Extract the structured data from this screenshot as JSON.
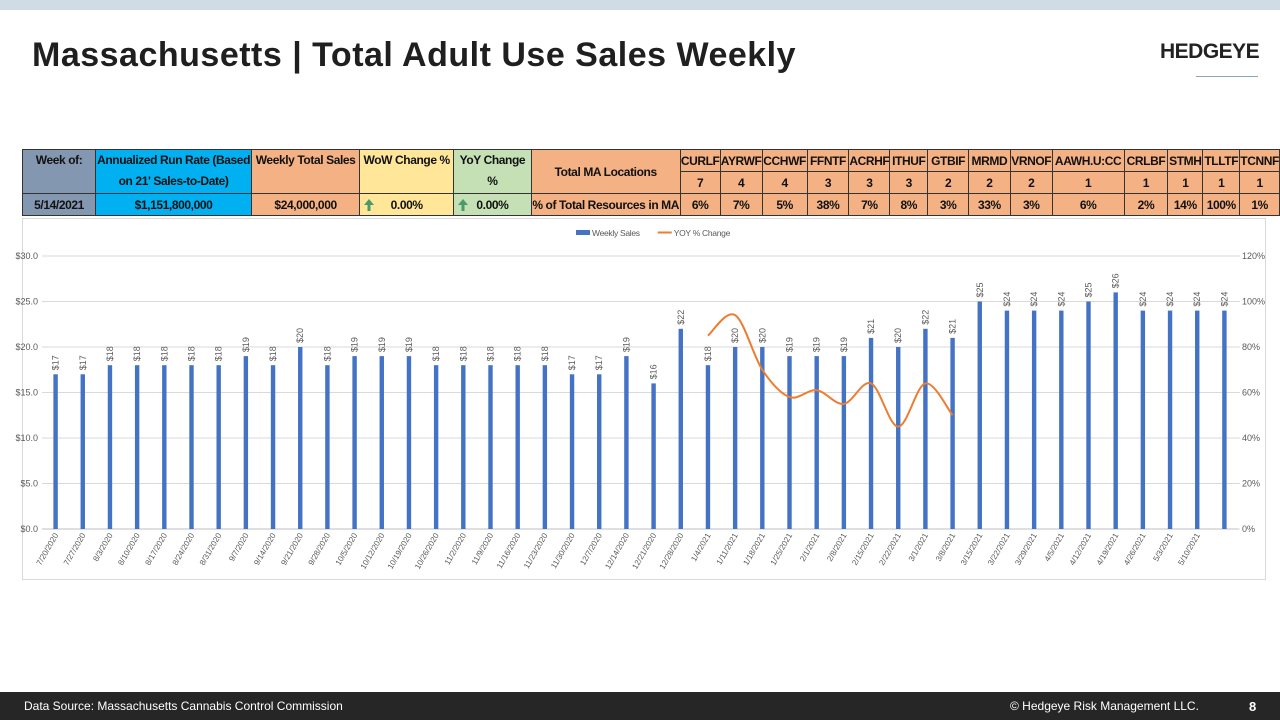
{
  "header": {
    "title": "Massachusetts | Total Adult Use Sales Weekly",
    "logo": "HEDGEYE"
  },
  "table": {
    "columns": [
      {
        "header": "Week of:",
        "value": "5/14/2021"
      },
      {
        "header": "Annualized Run Rate (Based on 21' Sales-to-Date)",
        "value": "$1,151,800,000"
      },
      {
        "header": "Weekly Total Sales",
        "value": "$24,000,000"
      },
      {
        "header": "WoW Change %",
        "value": "0.00%"
      },
      {
        "header": "YoY Change %",
        "value": "0.00%"
      }
    ],
    "locations_label": "Total MA Locations",
    "resources_label": "% of Total Resources in MA",
    "tickers": [
      {
        "name": "CURLF",
        "locations": 7,
        "share": "6%"
      },
      {
        "name": "AYRWF",
        "locations": 4,
        "share": "7%"
      },
      {
        "name": "CCHWF",
        "locations": 4,
        "share": "5%"
      },
      {
        "name": "FFNTF",
        "locations": 3,
        "share": "38%"
      },
      {
        "name": "ACRHF",
        "locations": 3,
        "share": "7%"
      },
      {
        "name": "ITHUF",
        "locations": 3,
        "share": "8%"
      },
      {
        "name": "GTBIF",
        "locations": 2,
        "share": "3%"
      },
      {
        "name": "MRMD",
        "locations": 2,
        "share": "33%"
      },
      {
        "name": "VRNOF",
        "locations": 2,
        "share": "3%"
      },
      {
        "name": "AAWH.U:CC",
        "locations": 1,
        "share": "6%"
      },
      {
        "name": "CRLBF",
        "locations": 1,
        "share": "2%"
      },
      {
        "name": "STMH",
        "locations": 1,
        "share": "14%"
      },
      {
        "name": "TLLTF",
        "locations": 1,
        "share": "100%"
      },
      {
        "name": "TCNNF",
        "locations": 1,
        "share": "1%"
      }
    ]
  },
  "chart_data": {
    "type": "bar",
    "categories": [
      "7/20/2020",
      "7/27/2020",
      "8/3/2020",
      "8/10/2020",
      "8/17/2020",
      "8/24/2020",
      "8/31/2020",
      "9/7/2020",
      "9/14/2020",
      "9/21/2020",
      "9/28/2020",
      "10/5/2020",
      "10/12/2020",
      "10/19/2020",
      "10/26/2020",
      "11/2/2020",
      "11/9/2020",
      "11/16/2020",
      "11/23/2020",
      "11/30/2020",
      "12/7/2020",
      "12/14/2020",
      "12/21/2020",
      "12/28/2020",
      "1/4/2021",
      "1/11/2021",
      "1/18/2021",
      "1/25/2021",
      "2/1/2021",
      "2/8/2021",
      "2/15/2021",
      "2/22/2021",
      "3/1/2021",
      "3/8/2021",
      "3/15/2021",
      "3/22/2021",
      "3/29/2021",
      "4/5/2021",
      "4/12/2021",
      "4/19/2021",
      "4/26/2021",
      "5/3/2021",
      "5/10/2021",
      null
    ],
    "series": [
      {
        "name": "Weekly Sales",
        "color": "#4472c4",
        "values": [
          17,
          17,
          18,
          18,
          18,
          18,
          18,
          19,
          18,
          20,
          18,
          19,
          19,
          19,
          18,
          18,
          18,
          18,
          18,
          17,
          17,
          19,
          16,
          22,
          18,
          20,
          20,
          19,
          19,
          19,
          21,
          20,
          22,
          21,
          25,
          24,
          24,
          24,
          25,
          26,
          24,
          24,
          24,
          24
        ],
        "value_labels": [
          "$17",
          "$17",
          "$18",
          "$18",
          "$18",
          "$18",
          "$18",
          "$19",
          "$18",
          "$20",
          "$18",
          "$19",
          "$19",
          "$19",
          "$18",
          "$18",
          "$18",
          "$18",
          "$18",
          "$17",
          "$17",
          "$19",
          "$16",
          "$22",
          "$18",
          "$20",
          "$20",
          "$19",
          "$19",
          "$19",
          "$21",
          "$20",
          "$22",
          "$21",
          "$25",
          "$24",
          "$24",
          "$24",
          "$25",
          "$26",
          "$24",
          "$24",
          "$24",
          "$24"
        ]
      },
      {
        "name": "YOY % Change",
        "color": "#ed7d31",
        "type": "line",
        "axis": "y2",
        "values": [
          null,
          null,
          null,
          null,
          null,
          null,
          null,
          null,
          null,
          null,
          null,
          null,
          null,
          null,
          null,
          null,
          null,
          null,
          null,
          null,
          null,
          null,
          null,
          null,
          85,
          94,
          70,
          58,
          61,
          55,
          64,
          45,
          64,
          50,
          null,
          null,
          null,
          null,
          null,
          null,
          null,
          null,
          null,
          null
        ]
      }
    ],
    "ylim": [
      0,
      30
    ],
    "yticks": [
      {
        "value": 0,
        "label": "$0.0"
      },
      {
        "value": 5,
        "label": "$5.0"
      },
      {
        "value": 10,
        "label": "$10.0"
      },
      {
        "value": 15,
        "label": "$15.0"
      },
      {
        "value": 20,
        "label": "$20.0"
      },
      {
        "value": 25,
        "label": "$25.0"
      },
      {
        "value": 30,
        "label": "$30.0"
      }
    ],
    "y2lim": [
      0,
      120
    ],
    "y2ticks": [
      {
        "value": 0,
        "label": "0%"
      },
      {
        "value": 20,
        "label": "20%"
      },
      {
        "value": 40,
        "label": "40%"
      },
      {
        "value": 60,
        "label": "60%"
      },
      {
        "value": 80,
        "label": "80%"
      },
      {
        "value": 100,
        "label": "100%"
      },
      {
        "value": 120,
        "label": "120%"
      }
    ],
    "grid": true,
    "legend": "top"
  },
  "footer": {
    "source": "Data Source: Massachusetts Cannabis Control Commission",
    "copyright": "© Hedgeye Risk Management LLC.",
    "page": "8"
  }
}
